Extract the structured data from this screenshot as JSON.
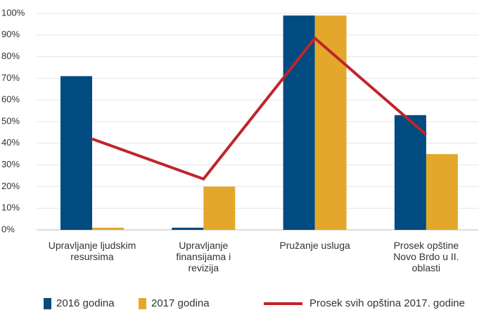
{
  "chart_data": {
    "type": "bar_line",
    "categories": [
      "Upravljanje ljudskim resursima",
      "Upravljanje finansijama i revizija",
      "Pružanje usluga",
      "Prosek opštine Novo Brdo u II. oblasti"
    ],
    "series": [
      {
        "name": "2016 godina",
        "type": "bar",
        "color": "#004b80",
        "values": [
          71,
          1,
          99,
          53
        ]
      },
      {
        "name": "2017 godina",
        "type": "bar",
        "color": "#e3a82b",
        "values": [
          1,
          20,
          99,
          35
        ]
      },
      {
        "name": "Prosek svih opština 2017. godine",
        "type": "line",
        "color": "#c0242b",
        "values": [
          42,
          23.5,
          88.5,
          44
        ]
      }
    ],
    "ylim": [
      0,
      100
    ],
    "yticks": [
      {
        "value": 0,
        "label": "0%"
      },
      {
        "value": 10,
        "label": "10%"
      },
      {
        "value": 20,
        "label": "20%"
      },
      {
        "value": 30,
        "label": "30%"
      },
      {
        "value": 40,
        "label": "40%"
      },
      {
        "value": 50,
        "label": "50%"
      },
      {
        "value": 60,
        "label": "60%"
      },
      {
        "value": 70,
        "label": "70%"
      },
      {
        "value": 80,
        "label": "80%"
      },
      {
        "value": 90,
        "label": "90%"
      },
      {
        "value": 100,
        "label": "100%"
      }
    ],
    "grid": true
  }
}
